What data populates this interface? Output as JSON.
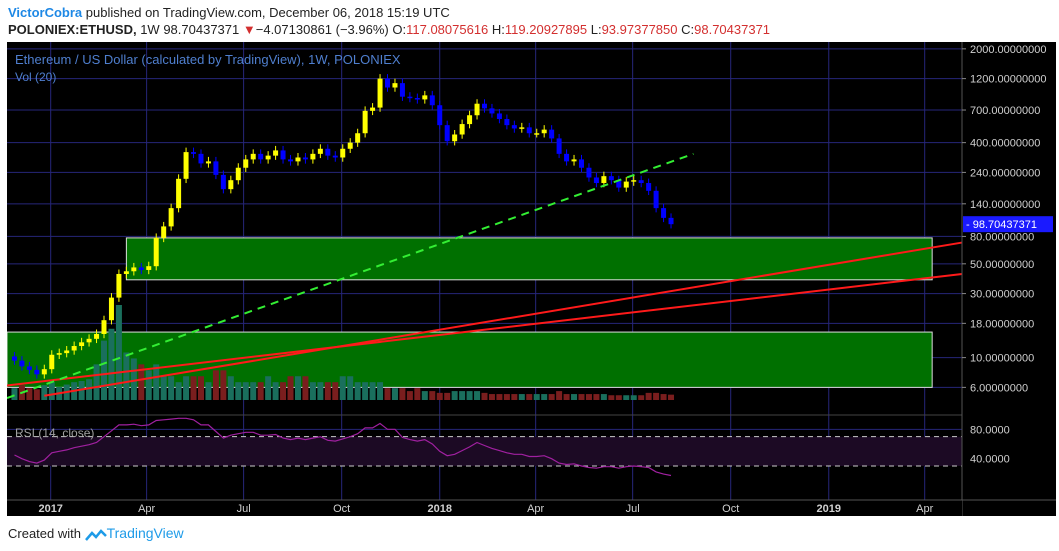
{
  "header": {
    "author": "VictorCobra",
    "published_text": "published on TradingView.com, December 06, 2018 15:19 UTC",
    "symbol": "POLONIEX:ETHUSD,",
    "interval": "1W",
    "last": "98.70437371",
    "change_arrow": "▼",
    "change": "−4.07130861 (−3.96%)",
    "o_label": "O:",
    "o_value": "117.08075616",
    "h_label": "H:",
    "h_value": "119.20927895",
    "l_label": "L:",
    "l_value": "93.97377850",
    "c_label": "C:",
    "c_value": "98.70437371"
  },
  "legend": {
    "title": "Ethereum / US Dollar (calculated by TradingView), 1W, POLONIEX",
    "volume": "Vol (20)",
    "rsi": "RSI (14, close)"
  },
  "footer": {
    "created_with": "Created with",
    "brand": "TradingView"
  },
  "colors": {
    "background": "#000000",
    "grid": "#26267a",
    "up_candle": "#ffff00",
    "down_candle": "#0000ff",
    "volume_up": "#1a6f5d",
    "volume_down": "#7a1e1e",
    "support_zone": "#007000",
    "trendline_red": "#ff1a1a",
    "trendline_green": "#33ee33",
    "rsi_line": "#a020a0",
    "price_label_bg": "#1a1aff"
  },
  "chart_data": {
    "type": "candlestick",
    "scale": "log",
    "ylim": [
      5,
      2100
    ],
    "x_range": [
      "2016-11-21",
      "2019-05-06"
    ],
    "price_axis_labels": [
      "2000.00000000",
      "1200.00000000",
      "700.00000000",
      "400.00000000",
      "240.00000000",
      "140.00000000",
      "80.00000000",
      "50.00000000",
      "30.00000000",
      "18.00000000",
      "10.00000000",
      "6.00000000"
    ],
    "price_axis_values": [
      2000,
      1200,
      700,
      400,
      240,
      140,
      80,
      50,
      30,
      18,
      10,
      6
    ],
    "last_price_label": "98.70437371",
    "last_price": 98.70437371,
    "time_axis_labels": [
      "2017",
      "Apr",
      "Jul",
      "Oct",
      "2018",
      "Apr",
      "Jul",
      "Oct",
      "2019",
      "Apr"
    ],
    "time_axis_bold": [
      true,
      false,
      false,
      false,
      true,
      false,
      false,
      false,
      true,
      false
    ],
    "time_axis_dates": [
      "2017-01-01",
      "2017-04-01",
      "2017-07-01",
      "2017-10-01",
      "2018-01-01",
      "2018-04-01",
      "2018-07-01",
      "2018-10-01",
      "2019-01-01",
      "2019-04-01"
    ],
    "weekly_close": [
      9.5,
      8.6,
      8.1,
      7.5,
      8.2,
      10.5,
      10.8,
      11.3,
      12.2,
      13,
      13.8,
      15,
      19,
      28,
      42,
      44,
      47,
      45,
      48,
      78,
      95,
      130,
      215,
      340,
      330,
      280,
      290,
      230,
      180,
      210,
      260,
      300,
      330,
      300,
      320,
      350,
      300,
      290,
      310,
      300,
      330,
      360,
      320,
      310,
      360,
      400,
      470,
      690,
      730,
      1200,
      1030,
      1110,
      880,
      860,
      840,
      900,
      760,
      540,
      410,
      460,
      550,
      640,
      780,
      720,
      660,
      600,
      540,
      510,
      520,
      470,
      470,
      500,
      430,
      330,
      290,
      300,
      260,
      220,
      200,
      225,
      210,
      185,
      205,
      210,
      200,
      175,
      130,
      110,
      98.70437371
    ],
    "weekly_volume": [
      2,
      2.5,
      2,
      1.8,
      2.5,
      3,
      2.2,
      2.6,
      3,
      3.2,
      3.5,
      6,
      10,
      12,
      16,
      8,
      7,
      6,
      5,
      6,
      4,
      4,
      3,
      4,
      4,
      4,
      3,
      5,
      5,
      4,
      3,
      3,
      3,
      3,
      4,
      3,
      3,
      4,
      4,
      4,
      3,
      3,
      3,
      3,
      4,
      4,
      3,
      3,
      3,
      3,
      2,
      2,
      2,
      1.5,
      2,
      1.5,
      1.5,
      1.2,
      1.2,
      1.5,
      1.5,
      1.5,
      1.5,
      1.2,
      1,
      1,
      1,
      1,
      1,
      1,
      1,
      1,
      1,
      1.5,
      1,
      1,
      1,
      1,
      1,
      1,
      0.8,
      0.8,
      0.8,
      0.8,
      0.8,
      1.2,
      1.2,
      1,
      0.9
    ],
    "rsi_axis_labels": [
      "80.0000",
      "40.0000"
    ],
    "rsi_axis_values": [
      80,
      40
    ],
    "rsi_levels": [
      70,
      30
    ],
    "rsi_approx": [
      45,
      40,
      36,
      34,
      38,
      48,
      50,
      52,
      55,
      57,
      59,
      62,
      70,
      78,
      86,
      86,
      87,
      85,
      86,
      92,
      93,
      94,
      95,
      95,
      93,
      86,
      86,
      77,
      68,
      72,
      74,
      76,
      76,
      72,
      72,
      73,
      68,
      66,
      68,
      66,
      68,
      70,
      65,
      64,
      67,
      70,
      74,
      82,
      82,
      88,
      80,
      80,
      69,
      66,
      64,
      66,
      60,
      50,
      44,
      46,
      51,
      56,
      62,
      58,
      54,
      51,
      48,
      46,
      46,
      43,
      43,
      44,
      40,
      34,
      32,
      33,
      30,
      28,
      27,
      29,
      29,
      27,
      29,
      30,
      29,
      28,
      22,
      19,
      17
    ],
    "support_zones": [
      {
        "top": 78,
        "bottom": 38,
        "from": "2017-03-13",
        "to": "2019-04-08"
      },
      {
        "top": 15.5,
        "bottom": 6,
        "from": "2016-11-21",
        "to": "2019-04-08"
      }
    ],
    "trendlines": [
      {
        "color": "red",
        "from": {
          "date": "2016-12-26",
          "price": 5.2
        },
        "to": {
          "date": "2019-05-06",
          "price": 72
        }
      },
      {
        "color": "red",
        "from": {
          "date": "2016-11-21",
          "price": 6.2
        },
        "to": {
          "date": "2019-05-06",
          "price": 42
        }
      },
      {
        "color": "green_dashed",
        "from": {
          "date": "2016-11-21",
          "price": 5
        },
        "to": {
          "date": "2018-08-27",
          "price": 330
        }
      }
    ]
  }
}
